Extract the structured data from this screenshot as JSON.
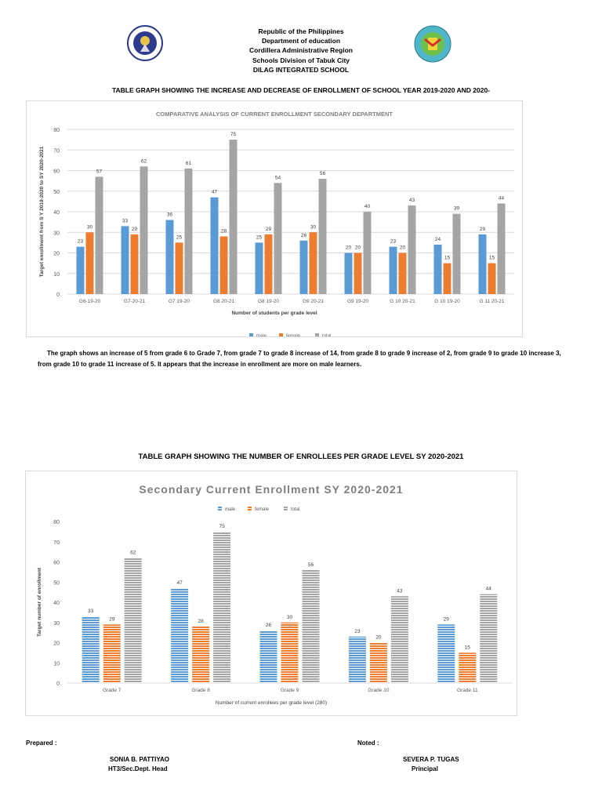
{
  "header": {
    "lines": [
      "Republic of the Philippines",
      "Department of education",
      "Cordillera Administrative Region",
      "Schools Division of Tabuk City",
      "DILAG INTEGRATED SCHOOL"
    ],
    "left_logo": "KAGAWARAN NG EDUKASYON",
    "right_logo": "DILAG INTEGRATED SCHOOL"
  },
  "section1_title": "TABLE GRAPH SHOWING THE INCREASE AND DECREASE OF ENROLLMENT OF SCHOOL YEAR 2019-2020 AND 2020-",
  "paragraph": "The graph shows an increase of 5 from grade 6 to Grade 7, from grade 7 to grade 8 increase of 14, from grade 8 to grade 9 increase of 2, from grade 9 to grade 10 increase 3, from grade 10 to grade 11 increase of 5. It appears that the increase in enrollment are more on male learners.",
  "section2_title": "TABLE GRAPH SHOWING THE NUMBER OF ENROLLEES PER GRADE LEVEL SY 2020-2021",
  "footer": {
    "prepared_label": "Prepared :",
    "prepared_name": "SONIA B. PATTIYAO",
    "prepared_title": "HT3/Sec.Dept. Head",
    "noted_label": "Noted :",
    "noted_name": "SEVERA P. TUGAS",
    "noted_title": "Principal"
  },
  "chart_data": [
    {
      "type": "bar",
      "title": "COMPARATIVE ANALYSIS OF CURRENT ENROLLMENT SECONDARY  DEPARTMENT",
      "xlabel": "Number of students per grade level",
      "ylabel": "Target enrollment  from S Y 2019-2020 to SY 2020-2021",
      "ylim": [
        0,
        80
      ],
      "yticks": [
        0,
        10,
        20,
        30,
        40,
        50,
        60,
        70,
        80
      ],
      "grid": true,
      "legend": "bottom",
      "categories": [
        "G6-19-20",
        "G7-20-21",
        "G7 19-20",
        "G8 20-21",
        "G8 19-20",
        "G9 20-21",
        "G9 19-20",
        "G 10 20-21",
        "G 10 19-20",
        "G 11 20-21"
      ],
      "series": [
        {
          "name": "male",
          "color": "#5b9bd5",
          "values": [
            23,
            33,
            36,
            47,
            25,
            26,
            20,
            23,
            24,
            29
          ]
        },
        {
          "name": "female",
          "color": "#ed7d31",
          "values": [
            30,
            29,
            25,
            28,
            29,
            30,
            20,
            20,
            15,
            15
          ]
        },
        {
          "name": "total",
          "color": "#a5a5a5",
          "values": [
            57,
            62,
            61,
            75,
            54,
            56,
            40,
            43,
            39,
            44
          ]
        }
      ]
    },
    {
      "type": "bar",
      "title": "Secondary Current Enrollment SY  2020-2021",
      "xlabel": "Number of current enrollees  per grade level (280)",
      "ylabel": "Target number of enrollment",
      "ylim": [
        0,
        80
      ],
      "yticks": [
        0,
        10,
        20,
        30,
        40,
        50,
        60,
        70,
        80
      ],
      "grid": false,
      "legend": "top",
      "pattern": "horizontal-stripes",
      "categories": [
        "Grade 7",
        "Grade 8",
        "Grade 9",
        "Grade 10",
        "Grade 11"
      ],
      "series": [
        {
          "name": "male",
          "color": "#5b9bd5",
          "values": [
            33,
            47,
            26,
            23,
            29
          ]
        },
        {
          "name": "female",
          "color": "#ed7d31",
          "values": [
            29,
            28,
            30,
            20,
            15
          ]
        },
        {
          "name": "total",
          "color": "#a5a5a5",
          "values": [
            62,
            75,
            56,
            43,
            44
          ]
        }
      ]
    }
  ]
}
